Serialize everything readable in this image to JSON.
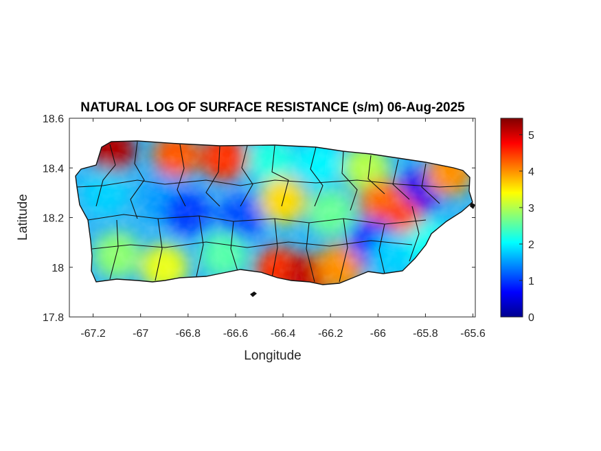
{
  "title": "NATURAL LOG OF SURFACE RESISTANCE (s/m) 06-Aug-2025",
  "xlabel": "Longitude",
  "ylabel": "Latitude",
  "x_ticks": [
    "-67.2",
    "-67",
    "-66.8",
    "-66.6",
    "-66.4",
    "-66.2",
    "-66",
    "-65.8",
    "-65.6"
  ],
  "y_ticks": [
    "18.6",
    "18.4",
    "18.2",
    "18",
    "17.8"
  ],
  "colorbar_ticks": [
    "5",
    "4",
    "3",
    "2",
    "1",
    "0"
  ],
  "chart_data": {
    "type": "heatmap",
    "title": "NATURAL LOG OF SURFACE RESISTANCE (s/m) 06-Aug-2025",
    "xlabel": "Longitude",
    "ylabel": "Latitude",
    "xlim": [
      -67.3,
      -65.59
    ],
    "ylim": [
      17.8,
      18.6
    ],
    "clim": [
      0,
      5.45
    ],
    "colormap": "jet",
    "grid": false,
    "x_tick_values": [
      -67.2,
      -67,
      -66.8,
      -66.6,
      -66.4,
      -66.2,
      -66,
      -65.8,
      -65.6
    ],
    "y_tick_values": [
      18.6,
      18.4,
      18.2,
      18,
      17.8
    ],
    "colorbar_tick_values": [
      5,
      4,
      3,
      2,
      1,
      0
    ],
    "region_value_samples": [
      {
        "lon": -67.12,
        "lat": 18.47,
        "value": 5.2
      },
      {
        "lon": -66.85,
        "lat": 18.45,
        "value": 4.3
      },
      {
        "lon": -66.65,
        "lat": 18.44,
        "value": 4.5
      },
      {
        "lon": -66.45,
        "lat": 18.43,
        "value": 2.2
      },
      {
        "lon": -66.25,
        "lat": 18.42,
        "value": 2.0
      },
      {
        "lon": -66.05,
        "lat": 18.4,
        "value": 3.0
      },
      {
        "lon": -65.83,
        "lat": 18.3,
        "value": 0.6
      },
      {
        "lon": -65.7,
        "lat": 18.38,
        "value": 4.0
      },
      {
        "lon": -67.15,
        "lat": 18.3,
        "value": 1.8
      },
      {
        "lon": -66.9,
        "lat": 18.28,
        "value": 1.5
      },
      {
        "lon": -66.8,
        "lat": 18.22,
        "value": 1.0
      },
      {
        "lon": -66.58,
        "lat": 18.2,
        "value": 1.1
      },
      {
        "lon": -66.4,
        "lat": 18.27,
        "value": 3.6
      },
      {
        "lon": -66.2,
        "lat": 18.22,
        "value": 2.6
      },
      {
        "lon": -65.98,
        "lat": 18.26,
        "value": 4.2
      },
      {
        "lon": -65.9,
        "lat": 18.18,
        "value": 4.4
      },
      {
        "lon": -67.1,
        "lat": 18.05,
        "value": 2.8
      },
      {
        "lon": -66.9,
        "lat": 18.0,
        "value": 3.3
      },
      {
        "lon": -66.65,
        "lat": 18.05,
        "value": 2.5
      },
      {
        "lon": -66.42,
        "lat": 17.99,
        "value": 4.5
      },
      {
        "lon": -66.3,
        "lat": 17.96,
        "value": 5.1
      },
      {
        "lon": -66.16,
        "lat": 18.0,
        "value": 4.0
      },
      {
        "lon": -66.02,
        "lat": 18.1,
        "value": 0.9
      },
      {
        "lon": -65.93,
        "lat": 18.05,
        "value": 1.8
      },
      {
        "lon": -65.78,
        "lat": 18.1,
        "value": 2.1
      }
    ]
  }
}
